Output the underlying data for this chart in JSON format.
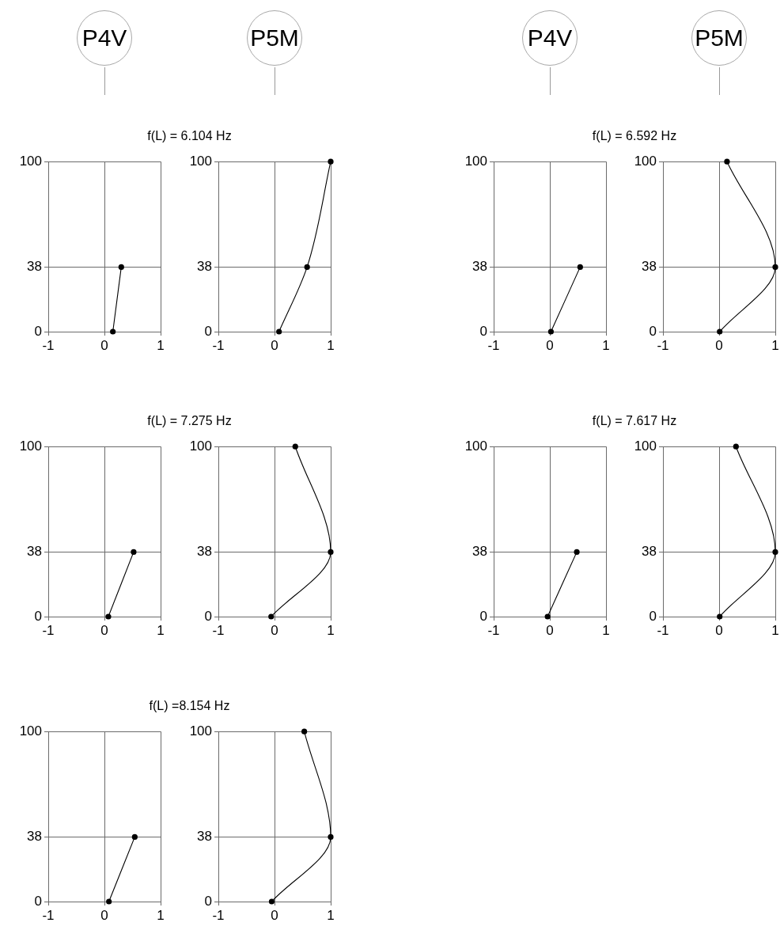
{
  "chart_data": [
    {
      "type": "other",
      "categories": [
        "P4V",
        "P5M",
        "P4V",
        "P5M"
      ]
    },
    {
      "type": "line",
      "title": "f(L) = 6.104 Hz",
      "x": [
        0.15,
        0.3
      ],
      "values": [
        0,
        38
      ],
      "color": "#000000",
      "xlim": [
        -1,
        1
      ],
      "xticks": [
        -1,
        0,
        1
      ],
      "ylim": [
        0,
        100
      ],
      "yticks": [
        0,
        38,
        100
      ],
      "grid": true,
      "marker": "circle"
    },
    {
      "type": "line",
      "x": [
        0.08,
        0.58,
        1
      ],
      "values": [
        0,
        38,
        100
      ],
      "color": "#000000",
      "xlim": [
        -1,
        1
      ],
      "xticks": [
        -1,
        0,
        1
      ],
      "ylim": [
        0,
        100
      ],
      "yticks": [
        0,
        38,
        100
      ],
      "grid": true,
      "marker": "circle"
    },
    {
      "type": "line",
      "title": "f(L) = 6.592 Hz",
      "x": [
        0.02,
        0.54
      ],
      "values": [
        0,
        38
      ],
      "color": "#000000",
      "xlim": [
        -1,
        1
      ],
      "xticks": [
        -1,
        0,
        1
      ],
      "ylim": [
        0,
        100
      ],
      "yticks": [
        0,
        38,
        100
      ],
      "grid": true,
      "marker": "circle"
    },
    {
      "type": "line",
      "x": [
        0.01,
        1,
        0.14
      ],
      "values": [
        0,
        38,
        100
      ],
      "color": "#000000",
      "xlim": [
        -1,
        1
      ],
      "xticks": [
        -1,
        0,
        1
      ],
      "ylim": [
        0,
        100
      ],
      "yticks": [
        0,
        38,
        100
      ],
      "grid": true,
      "marker": "circle"
    },
    {
      "type": "line",
      "title": "f(L) = 7.275 Hz",
      "x": [
        0.07,
        0.52
      ],
      "values": [
        0,
        38
      ],
      "color": "#000000",
      "xlim": [
        -1,
        1
      ],
      "xticks": [
        -1,
        0,
        1
      ],
      "ylim": [
        0,
        100
      ],
      "yticks": [
        0,
        38,
        100
      ],
      "grid": true,
      "marker": "circle"
    },
    {
      "type": "line",
      "x": [
        -0.06,
        1,
        0.37
      ],
      "values": [
        0,
        38,
        100
      ],
      "color": "#000000",
      "xlim": [
        -1,
        1
      ],
      "xticks": [
        -1,
        0,
        1
      ],
      "ylim": [
        0,
        100
      ],
      "yticks": [
        0,
        38,
        100
      ],
      "grid": true,
      "marker": "circle"
    },
    {
      "type": "line",
      "title": "f(L) = 7.617 Hz",
      "x": [
        -0.04,
        0.48
      ],
      "values": [
        0,
        38
      ],
      "color": "#000000",
      "xlim": [
        -1,
        1
      ],
      "xticks": [
        -1,
        0,
        1
      ],
      "ylim": [
        0,
        100
      ],
      "yticks": [
        0,
        38,
        100
      ],
      "grid": true,
      "marker": "circle"
    },
    {
      "type": "line",
      "x": [
        0.01,
        1,
        0.3
      ],
      "values": [
        0,
        38,
        100
      ],
      "color": "#000000",
      "xlim": [
        -1,
        1
      ],
      "xticks": [
        -1,
        0,
        1
      ],
      "ylim": [
        0,
        100
      ],
      "yticks": [
        0,
        38,
        100
      ],
      "grid": true,
      "marker": "circle"
    },
    {
      "type": "line",
      "title": "f(L) =8.154 Hz",
      "x": [
        0.08,
        0.54
      ],
      "values": [
        0,
        38
      ],
      "color": "#000000",
      "xlim": [
        -1,
        1
      ],
      "xticks": [
        -1,
        0,
        1
      ],
      "ylim": [
        0,
        100
      ],
      "yticks": [
        0,
        38,
        100
      ],
      "grid": true,
      "marker": "circle"
    },
    {
      "type": "line",
      "x": [
        -0.05,
        1,
        0.53
      ],
      "values": [
        0,
        38,
        100
      ],
      "color": "#000000",
      "xlim": [
        -1,
        1
      ],
      "xticks": [
        -1,
        0,
        1
      ],
      "ylim": [
        0,
        100
      ],
      "yticks": [
        0,
        38,
        100
      ],
      "grid": true,
      "marker": "circle"
    }
  ]
}
